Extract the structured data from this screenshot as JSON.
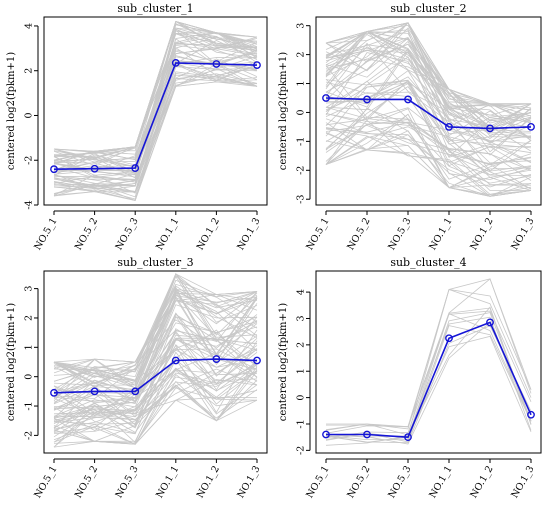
{
  "chart_data": [
    {
      "type": "line",
      "title": "sub_cluster_1",
      "ylabel": "centered log2(fpkm+1)",
      "xlabel": "",
      "categories": [
        "NO.5_1",
        "NO.5_2",
        "NO.5_3",
        "NO.1_1",
        "NO.1_2",
        "NO.1_3"
      ],
      "yticks": [
        -4,
        -2,
        0,
        2,
        4
      ],
      "ylim": [
        -4,
        4.4
      ],
      "grid": false,
      "series": [
        {
          "values": [
            -2.4,
            -2.38,
            -2.35,
            2.35,
            2.3,
            2.25
          ],
          "color": "#1515d6"
        }
      ],
      "background_band": {
        "color": "#c8c8c8",
        "upper": [
          -1.5,
          -1.6,
          -1.4,
          4.2,
          3.7,
          3.5
        ],
        "lower": [
          -3.6,
          -3.4,
          -3.8,
          1.3,
          1.5,
          1.3
        ],
        "count": 60
      }
    },
    {
      "type": "line",
      "title": "sub_cluster_2",
      "ylabel": "centered log2(fpkm+1)",
      "xlabel": "",
      "categories": [
        "NO.5_1",
        "NO.5_2",
        "NO.5_3",
        "NO.1_1",
        "NO.1_2",
        "NO.1_3"
      ],
      "yticks": [
        -3,
        -2,
        -1,
        0,
        1,
        2,
        3
      ],
      "ylim": [
        -3.2,
        3.3
      ],
      "grid": false,
      "series": [
        {
          "values": [
            0.5,
            0.45,
            0.45,
            -0.5,
            -0.55,
            -0.5
          ],
          "color": "#1515d6"
        }
      ],
      "background_band": {
        "color": "#c8c8c8",
        "upper": [
          2.4,
          2.8,
          3.1,
          0.8,
          0.3,
          0.3
        ],
        "lower": [
          -1.8,
          -1.3,
          -1.5,
          -2.6,
          -2.9,
          -2.7
        ],
        "count": 80
      }
    },
    {
      "type": "line",
      "title": "sub_cluster_3",
      "ylabel": "centered log2(fpkm+1)",
      "xlabel": "",
      "categories": [
        "NO.5_1",
        "NO.5_2",
        "NO.5_3",
        "NO.1_1",
        "NO.1_2",
        "NO.1_3"
      ],
      "yticks": [
        -2,
        -1,
        0,
        1,
        2,
        3
      ],
      "ylim": [
        -2.6,
        3.6
      ],
      "grid": false,
      "series": [
        {
          "values": [
            -0.55,
            -0.5,
            -0.5,
            0.55,
            0.6,
            0.55
          ],
          "color": "#1515d6"
        }
      ],
      "background_band": {
        "color": "#c8c8c8",
        "upper": [
          0.5,
          0.6,
          0.5,
          3.5,
          2.8,
          2.9
        ],
        "lower": [
          -2.4,
          -2.2,
          -2.3,
          -0.8,
          -1.5,
          -0.8
        ],
        "count": 80
      }
    },
    {
      "type": "line",
      "title": "sub_cluster_4",
      "ylabel": "centered log2(fpkm+1)",
      "xlabel": "",
      "categories": [
        "NO.5_1",
        "NO.5_2",
        "NO.5_3",
        "NO.1_1",
        "NO.1_2",
        "NO.1_3"
      ],
      "yticks": [
        -2,
        -1,
        0,
        1,
        2,
        3,
        4
      ],
      "ylim": [
        -2.1,
        4.8
      ],
      "grid": false,
      "series": [
        {
          "values": [
            -1.4,
            -1.4,
            -1.5,
            2.25,
            2.85,
            -0.65
          ],
          "color": "#1515d6"
        }
      ],
      "background_band": {
        "color": "#c8c8c8",
        "upper": [
          -1.0,
          -1.0,
          -1.1,
          4.1,
          4.5,
          0.3
        ],
        "lower": [
          -1.9,
          -1.9,
          -1.9,
          1.2,
          1.8,
          -1.3
        ],
        "count": 14
      }
    }
  ]
}
